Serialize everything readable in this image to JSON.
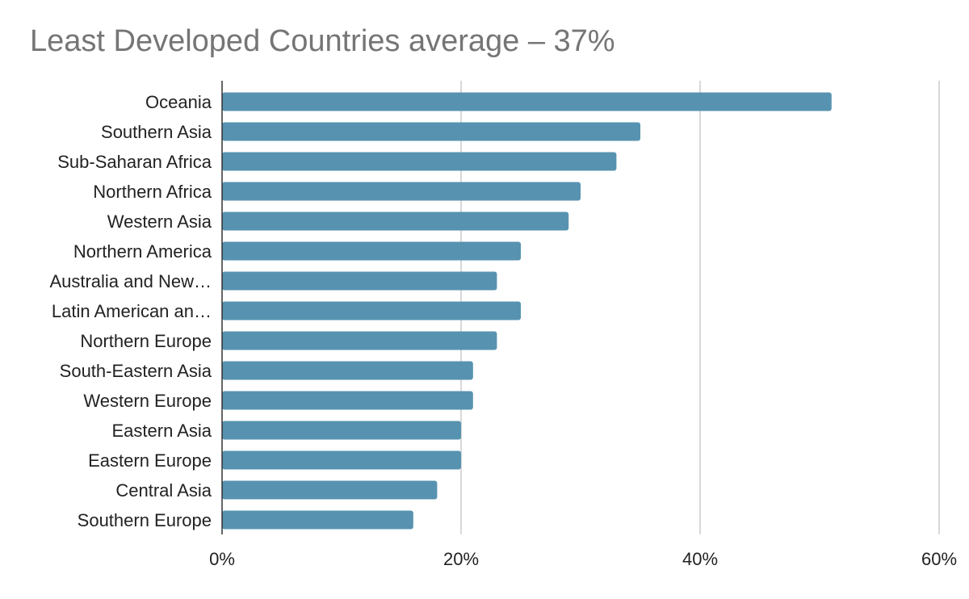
{
  "chart_data": {
    "type": "bar",
    "orientation": "horizontal",
    "title": "Least Developed Countries average – 37%",
    "xlabel": "",
    "ylabel": "",
    "categories": [
      "Oceania",
      "Southern Asia",
      "Sub-Saharan Africa",
      "Northern Africa",
      "Western Asia",
      "Northern America",
      "Australia and New…",
      "Latin American an…",
      "Northern Europe",
      "South-Eastern Asia",
      "Western Europe",
      "Eastern Asia",
      "Eastern Europe",
      "Central Asia",
      "Southern Europe"
    ],
    "values": [
      51,
      35,
      33,
      30,
      29,
      25,
      23,
      25,
      23,
      21,
      21,
      20,
      20,
      18,
      16
    ],
    "xlim": [
      0,
      60
    ],
    "xticks": [
      0,
      20,
      40,
      60
    ],
    "xtick_labels": [
      "0%",
      "20%",
      "40%",
      "60%"
    ],
    "grid": true,
    "legend": "none",
    "bar_color": "#5793b0",
    "grid_color": "#cccccc",
    "axis_color": "#333333"
  }
}
